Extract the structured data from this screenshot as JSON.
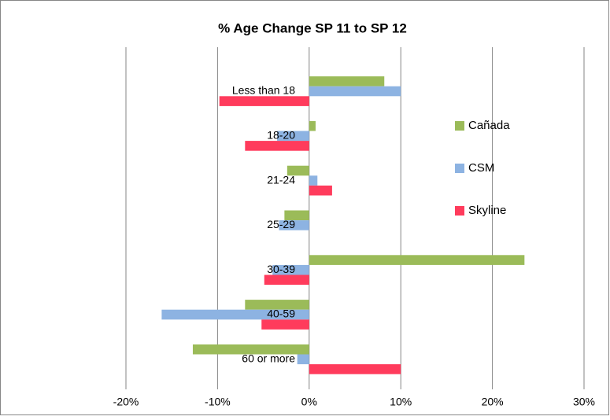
{
  "chart_data": {
    "type": "barh",
    "title": "% Age Change SP 11 to SP 12",
    "categories": [
      "Less than 18",
      "18-20",
      "21-24",
      "25-29",
      "30-39",
      "40-59",
      "60 or more"
    ],
    "series": [
      {
        "name": "Cañada",
        "color": "#9bbb59",
        "values": [
          8.2,
          0.7,
          -2.4,
          -2.7,
          23.5,
          -7.0,
          -12.7
        ]
      },
      {
        "name": "CSM",
        "color": "#8db3e2",
        "values": [
          10.0,
          -3.5,
          0.9,
          -3.3,
          -4.0,
          -16.1,
          -1.3
        ]
      },
      {
        "name": "Skyline",
        "color": "#ff3b5c",
        "values": [
          -9.8,
          -7.0,
          2.5,
          0,
          -4.9,
          -5.2,
          10.0
        ]
      }
    ],
    "xlim": [
      -20,
      30
    ],
    "xticks": [
      {
        "value": -20,
        "label": "-20%"
      },
      {
        "value": -10,
        "label": "-10%"
      },
      {
        "value": 0,
        "label": "0%"
      },
      {
        "value": 10,
        "label": "10%"
      },
      {
        "value": 20,
        "label": "20%"
      },
      {
        "value": 30,
        "label": "30%"
      }
    ],
    "grid": true,
    "legend": "right"
  }
}
